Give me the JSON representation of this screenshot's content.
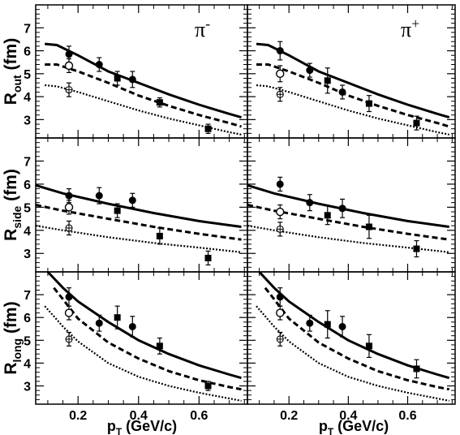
{
  "chart_data": {
    "type": "scatter",
    "layout": "3 rows x 2 columns, shared axes",
    "x_axis": {
      "label_main": "p",
      "label_sub": "T",
      "label_unit": " (GeV/c)",
      "range": [
        0.06,
        0.76
      ],
      "ticks": [
        0.2,
        0.4,
        0.6
      ],
      "tick_labels": [
        "0.2",
        "0.4",
        "0.6"
      ]
    },
    "columns": [
      {
        "label_main": "π",
        "label_sup": "-"
      },
      {
        "label_main": "π",
        "label_sup": "+"
      }
    ],
    "rows": [
      {
        "label_main": "R",
        "label_sub": "out",
        "label_unit": " (fm)",
        "ylim": [
          2.2,
          8.0
        ],
        "yticks": [
          3,
          4,
          5,
          6,
          7
        ],
        "ytick_labels": [
          "3",
          "4",
          "5",
          "6",
          "7"
        ]
      },
      {
        "label_main": "R",
        "label_sub": "side",
        "label_unit": " (fm)",
        "ylim": [
          2.2,
          8.0
        ],
        "yticks": [
          3,
          4,
          5,
          6,
          7
        ],
        "ytick_labels": [
          "3",
          "4",
          "5",
          "6",
          "7"
        ]
      },
      {
        "label_main": "R",
        "label_sub": "long",
        "label_unit": " (fm)",
        "ylim": [
          2.2,
          8.0
        ],
        "yticks": [
          3,
          4,
          5,
          6,
          7
        ],
        "ytick_labels": [
          "3",
          "4",
          "5",
          "6",
          "7"
        ]
      }
    ],
    "panels": [
      {
        "row": 0,
        "col": 0,
        "series": [
          {
            "marker": "filled-circle",
            "x": [
              0.17,
              0.27,
              0.38
            ],
            "y": [
              5.85,
              5.4,
              4.75
            ],
            "err": [
              0.35,
              0.3,
              0.35
            ]
          },
          {
            "marker": "open-circle",
            "x": [
              0.17
            ],
            "y": [
              5.35
            ],
            "err": [
              0.3
            ]
          },
          {
            "marker": "open-cross-circle",
            "x": [
              0.17
            ],
            "y": [
              4.3
            ],
            "err": [
              0.3
            ]
          },
          {
            "marker": "filled-square",
            "x": [
              0.33,
              0.47,
              0.63
            ],
            "y": [
              4.8,
              3.75,
              2.6
            ],
            "err": [
              0.3,
              0.2,
              0.2
            ]
          }
        ],
        "curves": [
          {
            "style": "solid",
            "x": [
              0.09,
              0.13,
              0.2,
              0.3,
              0.4,
              0.5,
              0.6,
              0.7,
              0.74
            ],
            "y": [
              6.3,
              6.25,
              5.8,
              5.1,
              4.6,
              4.1,
              3.65,
              3.25,
              3.1
            ]
          },
          {
            "style": "dashed",
            "x": [
              0.09,
              0.13,
              0.2,
              0.3,
              0.4,
              0.5,
              0.6,
              0.7,
              0.74
            ],
            "y": [
              5.4,
              5.4,
              5.1,
              4.6,
              4.05,
              3.6,
              3.2,
              2.85,
              2.7
            ]
          },
          {
            "style": "dotted",
            "x": [
              0.09,
              0.13,
              0.2,
              0.3,
              0.4,
              0.5,
              0.6,
              0.7,
              0.74
            ],
            "y": [
              4.5,
              4.45,
              4.2,
              3.8,
              3.4,
              3.05,
              2.75,
              2.45,
              2.35
            ]
          }
        ]
      },
      {
        "row": 0,
        "col": 1,
        "series": [
          {
            "marker": "filled-circle",
            "x": [
              0.17,
              0.27,
              0.38
            ],
            "y": [
              6.0,
              5.15,
              4.2
            ],
            "err": [
              0.4,
              0.3,
              0.3
            ]
          },
          {
            "marker": "open-circle",
            "x": [
              0.17
            ],
            "y": [
              5.0
            ],
            "err": [
              0.35
            ]
          },
          {
            "marker": "open-cross-circle",
            "x": [
              0.17
            ],
            "y": [
              4.1
            ],
            "err": [
              0.3
            ]
          },
          {
            "marker": "filled-square",
            "x": [
              0.33,
              0.47,
              0.63
            ],
            "y": [
              4.7,
              3.7,
              2.85
            ],
            "err": [
              0.55,
              0.35,
              0.3
            ]
          }
        ],
        "curves": [
          {
            "style": "solid",
            "x": [
              0.09,
              0.13,
              0.2,
              0.3,
              0.4,
              0.5,
              0.6,
              0.7,
              0.74
            ],
            "y": [
              6.3,
              6.25,
              5.8,
              5.1,
              4.6,
              4.1,
              3.65,
              3.25,
              3.1
            ]
          },
          {
            "style": "dashed",
            "x": [
              0.09,
              0.13,
              0.2,
              0.3,
              0.4,
              0.5,
              0.6,
              0.7,
              0.74
            ],
            "y": [
              5.4,
              5.4,
              5.1,
              4.6,
              4.05,
              3.6,
              3.2,
              2.85,
              2.7
            ]
          },
          {
            "style": "dotted",
            "x": [
              0.09,
              0.13,
              0.2,
              0.3,
              0.4,
              0.5,
              0.6,
              0.7,
              0.74
            ],
            "y": [
              4.5,
              4.45,
              4.2,
              3.8,
              3.4,
              3.05,
              2.75,
              2.45,
              2.35
            ]
          }
        ]
      },
      {
        "row": 1,
        "col": 0,
        "series": [
          {
            "marker": "filled-circle",
            "x": [
              0.17,
              0.27,
              0.38
            ],
            "y": [
              5.5,
              5.5,
              5.3
            ],
            "err": [
              0.3,
              0.35,
              0.3
            ]
          },
          {
            "marker": "open-circle",
            "x": [
              0.17
            ],
            "y": [
              5.0
            ],
            "err": [
              0.3
            ]
          },
          {
            "marker": "open-cross-circle",
            "x": [
              0.17
            ],
            "y": [
              4.1
            ],
            "err": [
              0.3
            ]
          },
          {
            "marker": "filled-square",
            "x": [
              0.33,
              0.47,
              0.63
            ],
            "y": [
              4.85,
              3.75,
              2.8
            ],
            "err": [
              0.3,
              0.35,
              0.3
            ]
          }
        ],
        "curves": [
          {
            "style": "solid",
            "x": [
              0.06,
              0.15,
              0.3,
              0.45,
              0.6,
              0.74
            ],
            "y": [
              5.95,
              5.6,
              5.15,
              4.75,
              4.4,
              4.15
            ]
          },
          {
            "style": "dashed",
            "x": [
              0.06,
              0.15,
              0.3,
              0.45,
              0.6,
              0.74
            ],
            "y": [
              5.1,
              4.85,
              4.5,
              4.15,
              3.85,
              3.6
            ]
          },
          {
            "style": "dotted",
            "x": [
              0.06,
              0.15,
              0.3,
              0.45,
              0.6,
              0.74
            ],
            "y": [
              4.2,
              4.0,
              3.7,
              3.45,
              3.25,
              3.05
            ]
          }
        ]
      },
      {
        "row": 1,
        "col": 1,
        "series": [
          {
            "marker": "filled-circle",
            "x": [
              0.17,
              0.27,
              0.38
            ],
            "y": [
              6.0,
              5.2,
              4.95
            ],
            "err": [
              0.3,
              0.35,
              0.4
            ]
          },
          {
            "marker": "open-circle",
            "x": [
              0.17
            ],
            "y": [
              4.8
            ],
            "err": [
              0.3
            ]
          },
          {
            "marker": "open-cross-circle",
            "x": [
              0.17
            ],
            "y": [
              4.05
            ],
            "err": [
              0.3
            ]
          },
          {
            "marker": "filled-square",
            "x": [
              0.33,
              0.47,
              0.63
            ],
            "y": [
              4.65,
              4.15,
              3.2
            ],
            "err": [
              0.4,
              0.5,
              0.35
            ]
          }
        ],
        "curves": [
          {
            "style": "solid",
            "x": [
              0.06,
              0.15,
              0.3,
              0.45,
              0.6,
              0.74
            ],
            "y": [
              5.95,
              5.6,
              5.15,
              4.75,
              4.4,
              4.15
            ]
          },
          {
            "style": "dashed",
            "x": [
              0.06,
              0.15,
              0.3,
              0.45,
              0.6,
              0.74
            ],
            "y": [
              5.1,
              4.85,
              4.5,
              4.15,
              3.85,
              3.6
            ]
          },
          {
            "style": "dotted",
            "x": [
              0.06,
              0.15,
              0.3,
              0.45,
              0.6,
              0.74
            ],
            "y": [
              4.2,
              4.0,
              3.7,
              3.45,
              3.25,
              3.05
            ]
          }
        ]
      },
      {
        "row": 2,
        "col": 0,
        "series": [
          {
            "marker": "filled-circle",
            "x": [
              0.17,
              0.27,
              0.38
            ],
            "y": [
              6.9,
              5.75,
              5.6
            ],
            "err": [
              0.4,
              0.35,
              0.45
            ]
          },
          {
            "marker": "open-circle",
            "x": [
              0.17
            ],
            "y": [
              6.2
            ],
            "err": [
              0.3
            ]
          },
          {
            "marker": "open-cross-circle",
            "x": [
              0.17
            ],
            "y": [
              5.05
            ],
            "err": [
              0.3
            ]
          },
          {
            "marker": "filled-square",
            "x": [
              0.33,
              0.47,
              0.63
            ],
            "y": [
              6.0,
              4.75,
              3.0
            ],
            "err": [
              0.5,
              0.35,
              0.2
            ]
          }
        ],
        "curves": [
          {
            "style": "solid",
            "x": [
              0.1,
              0.15,
              0.2,
              0.3,
              0.4,
              0.5,
              0.6,
              0.7,
              0.74
            ],
            "y": [
              8.0,
              7.3,
              6.7,
              5.8,
              5.0,
              4.4,
              3.9,
              3.5,
              3.35
            ]
          },
          {
            "style": "dashed",
            "x": [
              0.12,
              0.15,
              0.2,
              0.3,
              0.4,
              0.5,
              0.6,
              0.7,
              0.74
            ],
            "y": [
              7.3,
              6.8,
              5.95,
              4.9,
              4.2,
              3.65,
              3.25,
              2.95,
              2.85
            ]
          },
          {
            "style": "dotted",
            "x": [
              0.09,
              0.15,
              0.2,
              0.3,
              0.4,
              0.5,
              0.6,
              0.7,
              0.74
            ],
            "y": [
              6.5,
              5.6,
              4.95,
              4.0,
              3.4,
              3.0,
              2.7,
              2.45,
              2.35
            ]
          }
        ]
      },
      {
        "row": 2,
        "col": 1,
        "series": [
          {
            "marker": "filled-circle",
            "x": [
              0.17,
              0.27,
              0.38
            ],
            "y": [
              6.9,
              5.75,
              5.6
            ],
            "err": [
              0.4,
              0.35,
              0.45
            ]
          },
          {
            "marker": "open-circle",
            "x": [
              0.17
            ],
            "y": [
              6.2
            ],
            "err": [
              0.3
            ]
          },
          {
            "marker": "open-cross-circle",
            "x": [
              0.17
            ],
            "y": [
              5.05
            ],
            "err": [
              0.3
            ]
          },
          {
            "marker": "filled-square",
            "x": [
              0.33,
              0.47,
              0.63
            ],
            "y": [
              5.7,
              4.75,
              3.75
            ],
            "err": [
              0.6,
              0.5,
              0.4
            ]
          }
        ],
        "curves": [
          {
            "style": "solid",
            "x": [
              0.1,
              0.15,
              0.2,
              0.3,
              0.4,
              0.5,
              0.6,
              0.7,
              0.74
            ],
            "y": [
              8.0,
              7.3,
              6.7,
              5.8,
              5.0,
              4.4,
              3.9,
              3.5,
              3.35
            ]
          },
          {
            "style": "dashed",
            "x": [
              0.12,
              0.15,
              0.2,
              0.3,
              0.4,
              0.5,
              0.6,
              0.7,
              0.74
            ],
            "y": [
              7.3,
              6.8,
              5.95,
              4.9,
              4.2,
              3.65,
              3.25,
              2.95,
              2.85
            ]
          },
          {
            "style": "dotted",
            "x": [
              0.09,
              0.15,
              0.2,
              0.3,
              0.4,
              0.5,
              0.6,
              0.7,
              0.74
            ],
            "y": [
              6.5,
              5.6,
              4.95,
              4.0,
              3.4,
              3.0,
              2.7,
              2.45,
              2.35
            ]
          }
        ]
      }
    ]
  }
}
